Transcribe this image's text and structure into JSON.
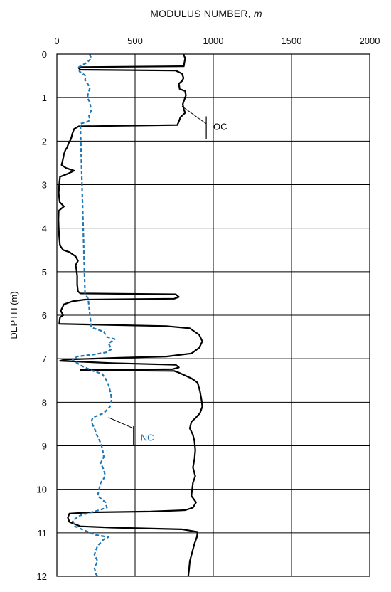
{
  "chart_data": {
    "type": "line",
    "title": "MODULUS NUMBER,",
    "title_var": "m",
    "xlabel": "MODULUS NUMBER, m",
    "ylabel": "DEPTH (m)",
    "xlim": [
      0,
      2000
    ],
    "ylim": [
      12,
      0
    ],
    "x_ticks": [
      0,
      500,
      1000,
      1500,
      2000
    ],
    "y_ticks": [
      0,
      1,
      2,
      3,
      4,
      5,
      6,
      7,
      8,
      9,
      10,
      11,
      12
    ],
    "x_axis_position": "top",
    "y_inverted": true,
    "grid": true,
    "series": [
      {
        "style": "solid",
        "color": "#000000",
        "points": [
          [
            810,
            0.0
          ],
          [
            820,
            0.1
          ],
          [
            815,
            0.2
          ],
          [
            812,
            0.28
          ],
          [
            160,
            0.3
          ],
          [
            140,
            0.32
          ],
          [
            150,
            0.36
          ],
          [
            760,
            0.38
          ],
          [
            800,
            0.45
          ],
          [
            810,
            0.55
          ],
          [
            800,
            0.62
          ],
          [
            780,
            0.68
          ],
          [
            785,
            0.8
          ],
          [
            820,
            0.85
          ],
          [
            825,
            0.95
          ],
          [
            815,
            1.05
          ],
          [
            805,
            1.15
          ],
          [
            810,
            1.25
          ],
          [
            820,
            1.35
          ],
          [
            790,
            1.45
          ],
          [
            780,
            1.55
          ],
          [
            770,
            1.63
          ],
          [
            140,
            1.66
          ],
          [
            110,
            1.72
          ],
          [
            100,
            1.82
          ],
          [
            90,
            1.95
          ],
          [
            75,
            2.05
          ],
          [
            65,
            2.15
          ],
          [
            55,
            2.2
          ],
          [
            45,
            2.3
          ],
          [
            40,
            2.4
          ],
          [
            30,
            2.55
          ],
          [
            60,
            2.62
          ],
          [
            110,
            2.68
          ],
          [
            70,
            2.75
          ],
          [
            20,
            2.82
          ],
          [
            15,
            3.0
          ],
          [
            12,
            3.2
          ],
          [
            18,
            3.4
          ],
          [
            45,
            3.5
          ],
          [
            12,
            3.6
          ],
          [
            10,
            3.8
          ],
          [
            12,
            4.0
          ],
          [
            15,
            4.2
          ],
          [
            20,
            4.4
          ],
          [
            40,
            4.5
          ],
          [
            80,
            4.55
          ],
          [
            120,
            4.65
          ],
          [
            135,
            4.75
          ],
          [
            120,
            4.85
          ],
          [
            125,
            4.95
          ],
          [
            130,
            5.1
          ],
          [
            130,
            5.3
          ],
          [
            135,
            5.45
          ],
          [
            150,
            5.5
          ],
          [
            760,
            5.52
          ],
          [
            780,
            5.58
          ],
          [
            750,
            5.62
          ],
          [
            180,
            5.64
          ],
          [
            100,
            5.68
          ],
          [
            45,
            5.75
          ],
          [
            25,
            5.9
          ],
          [
            40,
            6.0
          ],
          [
            20,
            6.05
          ],
          [
            15,
            6.2
          ],
          [
            300,
            6.22
          ],
          [
            700,
            6.25
          ],
          [
            850,
            6.3
          ],
          [
            910,
            6.45
          ],
          [
            930,
            6.6
          ],
          [
            910,
            6.75
          ],
          [
            860,
            6.88
          ],
          [
            700,
            6.95
          ],
          [
            400,
            6.98
          ],
          [
            50,
            7.02
          ],
          [
            20,
            7.05
          ],
          [
            350,
            7.1
          ],
          [
            760,
            7.14
          ],
          [
            780,
            7.2
          ],
          [
            740,
            7.24
          ],
          [
            150,
            7.26
          ],
          [
            750,
            7.28
          ],
          [
            780,
            7.32
          ],
          [
            860,
            7.45
          ],
          [
            900,
            7.55
          ],
          [
            915,
            7.75
          ],
          [
            925,
            7.95
          ],
          [
            930,
            8.1
          ],
          [
            915,
            8.25
          ],
          [
            890,
            8.35
          ],
          [
            860,
            8.45
          ],
          [
            850,
            8.6
          ],
          [
            870,
            8.75
          ],
          [
            880,
            8.9
          ],
          [
            885,
            9.1
          ],
          [
            880,
            9.3
          ],
          [
            870,
            9.5
          ],
          [
            885,
            9.7
          ],
          [
            870,
            9.85
          ],
          [
            865,
            10.0
          ],
          [
            860,
            10.15
          ],
          [
            890,
            10.3
          ],
          [
            870,
            10.42
          ],
          [
            820,
            10.48
          ],
          [
            600,
            10.51
          ],
          [
            200,
            10.53
          ],
          [
            80,
            10.56
          ],
          [
            70,
            10.65
          ],
          [
            80,
            10.75
          ],
          [
            150,
            10.85
          ],
          [
            350,
            10.88
          ],
          [
            800,
            10.92
          ],
          [
            900,
            10.98
          ],
          [
            895,
            11.1
          ],
          [
            880,
            11.25
          ],
          [
            865,
            11.45
          ],
          [
            850,
            11.65
          ],
          [
            845,
            11.85
          ],
          [
            840,
            12.0
          ]
        ]
      },
      {
        "style": "dashed",
        "color": "#1f77b4",
        "points": [
          [
            210,
            0.0
          ],
          [
            220,
            0.1
          ],
          [
            190,
            0.2
          ],
          [
            140,
            0.3
          ],
          [
            145,
            0.4
          ],
          [
            185,
            0.5
          ],
          [
            180,
            0.6
          ],
          [
            200,
            0.7
          ],
          [
            210,
            0.8
          ],
          [
            200,
            0.9
          ],
          [
            195,
            1.0
          ],
          [
            210,
            1.1
          ],
          [
            220,
            1.3
          ],
          [
            205,
            1.4
          ],
          [
            210,
            1.5
          ],
          [
            200,
            1.55
          ],
          [
            150,
            1.6
          ],
          [
            180,
            5.5
          ],
          [
            200,
            5.62
          ],
          [
            220,
            6.28
          ],
          [
            260,
            6.33
          ],
          [
            300,
            6.38
          ],
          [
            320,
            6.5
          ],
          [
            370,
            6.55
          ],
          [
            330,
            6.65
          ],
          [
            350,
            6.78
          ],
          [
            320,
            6.85
          ],
          [
            240,
            6.9
          ],
          [
            130,
            6.95
          ],
          [
            100,
            7.03
          ],
          [
            150,
            7.15
          ],
          [
            230,
            7.28
          ],
          [
            250,
            7.3
          ],
          [
            290,
            7.35
          ],
          [
            310,
            7.45
          ],
          [
            330,
            7.6
          ],
          [
            345,
            7.8
          ],
          [
            350,
            7.95
          ],
          [
            340,
            8.1
          ],
          [
            300,
            8.25
          ],
          [
            230,
            8.35
          ],
          [
            220,
            8.45
          ],
          [
            240,
            8.6
          ],
          [
            255,
            8.75
          ],
          [
            275,
            8.9
          ],
          [
            290,
            9.05
          ],
          [
            300,
            9.25
          ],
          [
            280,
            9.4
          ],
          [
            300,
            9.55
          ],
          [
            310,
            9.7
          ],
          [
            280,
            9.85
          ],
          [
            270,
            10.0
          ],
          [
            260,
            10.15
          ],
          [
            310,
            10.3
          ],
          [
            320,
            10.42
          ],
          [
            250,
            10.5
          ],
          [
            200,
            10.55
          ],
          [
            150,
            10.6
          ],
          [
            100,
            10.72
          ],
          [
            115,
            10.85
          ],
          [
            180,
            10.95
          ],
          [
            250,
            11.05
          ],
          [
            330,
            11.1
          ],
          [
            300,
            11.15
          ],
          [
            260,
            11.3
          ],
          [
            240,
            11.5
          ],
          [
            260,
            11.65
          ],
          [
            240,
            11.8
          ],
          [
            250,
            11.95
          ],
          [
            260,
            12.0
          ]
        ]
      }
    ],
    "annotations": [
      {
        "text": "OC",
        "color": "#000000"
      },
      {
        "text": "NC",
        "color": "#1f6fb0"
      }
    ]
  }
}
